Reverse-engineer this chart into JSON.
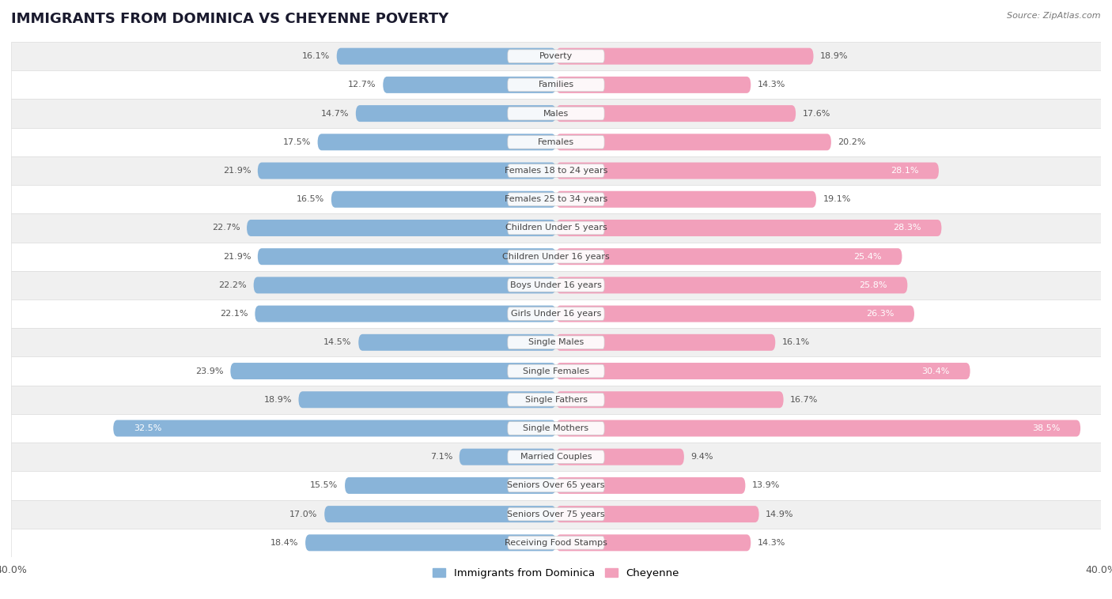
{
  "title": "IMMIGRANTS FROM DOMINICA VS CHEYENNE POVERTY",
  "source": "Source: ZipAtlas.com",
  "categories": [
    "Poverty",
    "Families",
    "Males",
    "Females",
    "Females 18 to 24 years",
    "Females 25 to 34 years",
    "Children Under 5 years",
    "Children Under 16 years",
    "Boys Under 16 years",
    "Girls Under 16 years",
    "Single Males",
    "Single Females",
    "Single Fathers",
    "Single Mothers",
    "Married Couples",
    "Seniors Over 65 years",
    "Seniors Over 75 years",
    "Receiving Food Stamps"
  ],
  "dominica_values": [
    16.1,
    12.7,
    14.7,
    17.5,
    21.9,
    16.5,
    22.7,
    21.9,
    22.2,
    22.1,
    14.5,
    23.9,
    18.9,
    32.5,
    7.1,
    15.5,
    17.0,
    18.4
  ],
  "cheyenne_values": [
    18.9,
    14.3,
    17.6,
    20.2,
    28.1,
    19.1,
    28.3,
    25.4,
    25.8,
    26.3,
    16.1,
    30.4,
    16.7,
    38.5,
    9.4,
    13.9,
    14.9,
    14.3
  ],
  "dominica_color": "#89b4d9",
  "cheyenne_color": "#f2a0bb",
  "background_color": "#ffffff",
  "row_colors": [
    "#f0f0f0",
    "#ffffff"
  ],
  "xlim": 40.0,
  "bar_height": 0.58,
  "title_fontsize": 13,
  "label_fontsize": 8,
  "category_fontsize": 8,
  "source_fontsize": 8,
  "highlight_threshold": 25.0,
  "row_border_color": "#dddddd"
}
